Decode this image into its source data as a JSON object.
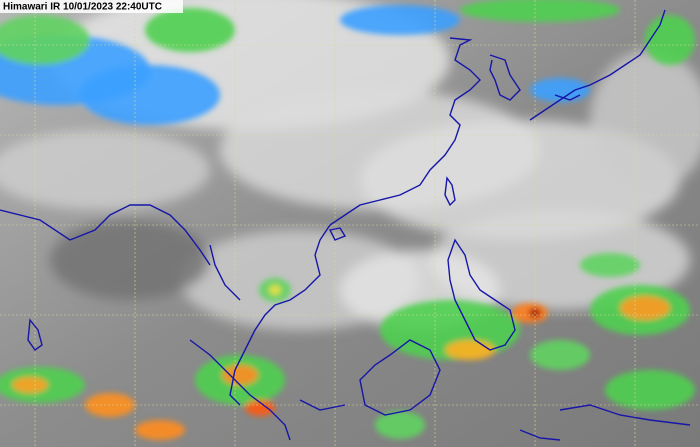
{
  "header": {
    "title": "Himawari IR 10/01/2023 22:40UTC"
  }
}
